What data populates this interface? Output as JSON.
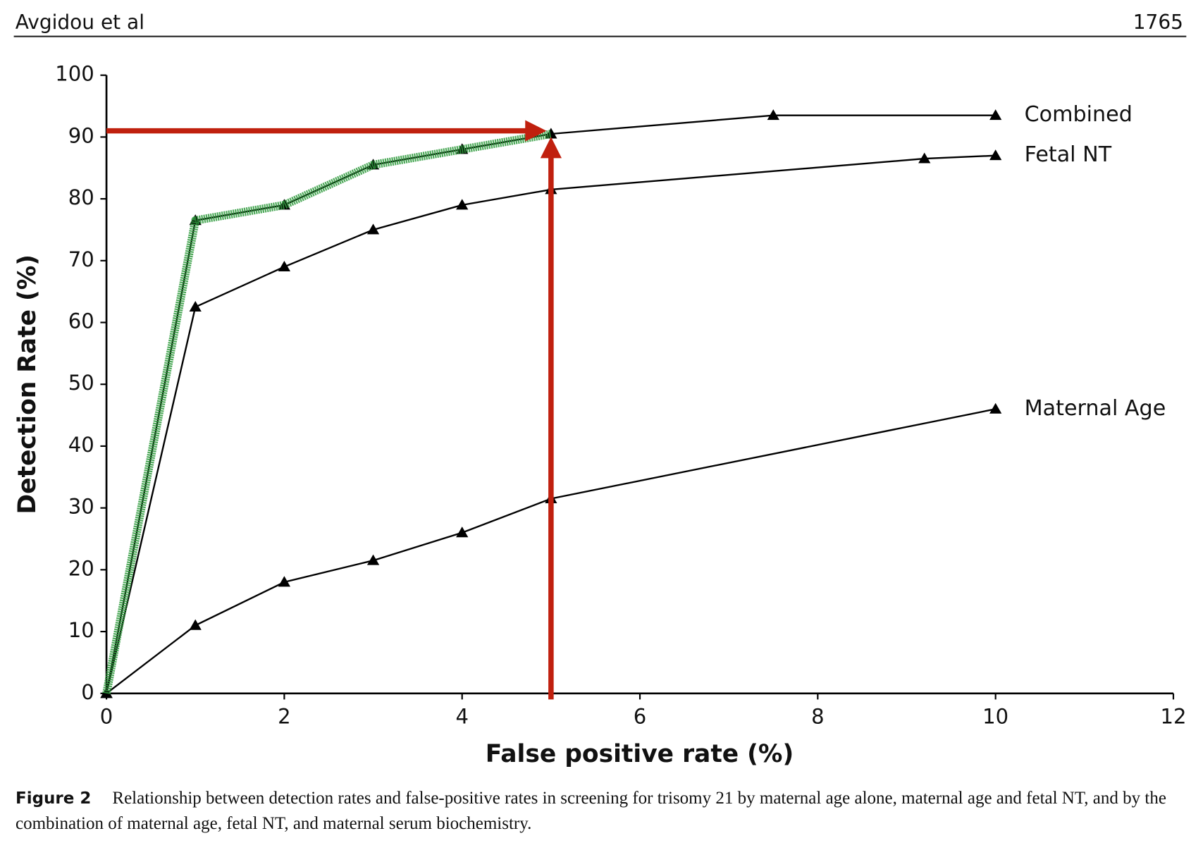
{
  "header": {
    "left": "Avgidou et al",
    "right": "1765"
  },
  "chart_data": {
    "type": "line",
    "xlabel": "False positive rate (%)",
    "ylabel": "Detection Rate (%)",
    "xlim": [
      0,
      12
    ],
    "ylim": [
      0,
      100
    ],
    "xticks": [
      0,
      2,
      4,
      6,
      8,
      10,
      12
    ],
    "yticks": [
      0,
      10,
      20,
      30,
      40,
      50,
      60,
      70,
      80,
      90,
      100
    ],
    "marker": "triangle",
    "series": [
      {
        "name": "Combined",
        "color": "#000000",
        "x": [
          0,
          1,
          2,
          3,
          4,
          5,
          7.5,
          10
        ],
        "values": [
          0,
          76.5,
          79,
          85.5,
          88,
          90.5,
          93.5,
          93.5
        ]
      },
      {
        "name": "Fetal NT",
        "color": "#000000",
        "x": [
          0,
          1,
          2,
          3,
          4,
          5,
          9.2,
          10
        ],
        "values": [
          0,
          62.5,
          69,
          75,
          79,
          81.5,
          86.5,
          87
        ]
      },
      {
        "name": "Maternal Age",
        "color": "#000000",
        "x": [
          0,
          1,
          2,
          3,
          4,
          5,
          10
        ],
        "values": [
          0,
          11,
          18,
          21.5,
          26,
          31.5,
          46
        ]
      }
    ],
    "highlight_color": "#2e9a3c",
    "reference": {
      "x": 5,
      "y": 91,
      "color": "#c0200e"
    }
  },
  "caption": {
    "label": "Figure 2",
    "text": "Relationship between detection rates and false-positive rates in screening for trisomy 21 by maternal age alone, maternal age and fetal NT, and by the combination of maternal age, fetal NT, and maternal serum biochemistry."
  }
}
